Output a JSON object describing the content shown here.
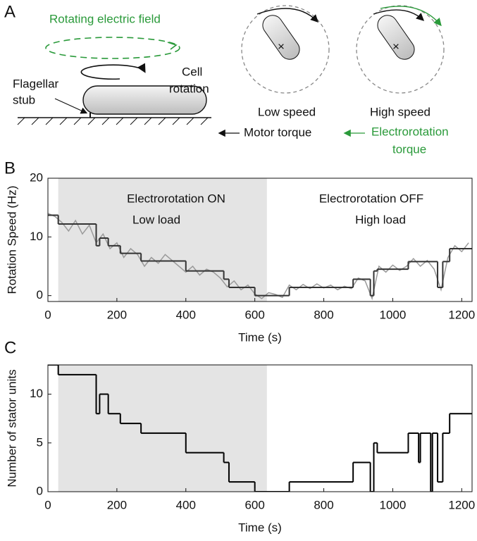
{
  "panel_a": {
    "label": "A",
    "field_label": "Rotating electric field",
    "stub_label": [
      "Flagellar",
      "stub"
    ],
    "rotation_label": [
      "Cell",
      "rotation"
    ],
    "low_speed": "Low speed",
    "high_speed": "High speed",
    "motor_torque": "Motor torque",
    "electro_torque": [
      "Electrorotation",
      "torque"
    ]
  },
  "chart_data": [
    {
      "type": "step",
      "panel_label": "B",
      "xlabel": "Time (s)",
      "ylabel": "Rotation Speed (Hz)",
      "xlim": [
        0,
        1230
      ],
      "ylim": [
        -1,
        20
      ],
      "xticks": [
        0,
        200,
        400,
        600,
        800,
        1000,
        1200
      ],
      "yticks": [
        0,
        10,
        20
      ],
      "shaded_x": [
        30,
        635
      ],
      "annotations": [
        "Electrorotation ON",
        "Low load",
        "Electrorotation OFF",
        "High load"
      ],
      "series": [
        {
          "style": "line",
          "color": "#9a9a9a",
          "x": [
            0,
            20,
            40,
            60,
            80,
            100,
            120,
            140,
            160,
            180,
            200,
            220,
            240,
            260,
            280,
            300,
            320,
            340,
            360,
            380,
            400,
            420,
            440,
            460,
            480,
            500,
            520,
            540,
            560,
            580,
            600,
            620,
            640,
            660,
            680,
            700,
            720,
            740,
            760,
            780,
            800,
            820,
            840,
            860,
            880,
            900,
            920,
            940,
            960,
            980,
            1000,
            1020,
            1040,
            1060,
            1080,
            1100,
            1120,
            1140,
            1160,
            1180,
            1200,
            1220
          ],
          "values": [
            14,
            13.5,
            12.5,
            11,
            12.8,
            10.5,
            12,
            9,
            10.5,
            8,
            9,
            6.5,
            8,
            7,
            5,
            6.5,
            5.5,
            7,
            6,
            5,
            4,
            5,
            3.5,
            4.5,
            4,
            3,
            1.5,
            2.5,
            1,
            1.8,
            0.3,
            -0.5,
            0.5,
            0.2,
            -0.3,
            1.8,
            1,
            1.9,
            1.2,
            2,
            1.3,
            1.8,
            1,
            1.6,
            1.2,
            3,
            2.5,
            -0.5,
            5,
            4,
            5.2,
            4.3,
            5,
            6.3,
            5,
            6,
            4.5,
            1,
            6.5,
            8.5,
            7.5,
            9
          ]
        },
        {
          "style": "step",
          "color": "#333333",
          "x": [
            0,
            30,
            140,
            150,
            175,
            210,
            270,
            400,
            510,
            525,
            600,
            700,
            885,
            935,
            945,
            955,
            1045,
            1130,
            1145,
            1165
          ],
          "values": [
            13.7,
            12.2,
            8.5,
            9.8,
            8.5,
            7.2,
            5.9,
            4.2,
            2.8,
            1.4,
            0,
            1.4,
            2.8,
            0,
            4.2,
            4.5,
            5.8,
            1.4,
            5.8,
            8
          ]
        }
      ]
    },
    {
      "type": "step",
      "panel_label": "C",
      "xlabel": "Time (s)",
      "ylabel": "Number of stator units",
      "xlim": [
        0,
        1230
      ],
      "ylim": [
        0,
        13
      ],
      "xticks": [
        0,
        200,
        400,
        600,
        800,
        1000,
        1200
      ],
      "yticks": [
        0,
        5,
        10
      ],
      "shaded_x": [
        30,
        635
      ],
      "series": [
        {
          "style": "step",
          "color": "#000000",
          "x": [
            0,
            30,
            140,
            150,
            175,
            210,
            270,
            400,
            510,
            525,
            600,
            700,
            885,
            935,
            945,
            955,
            1045,
            1075,
            1080,
            1110,
            1115,
            1130,
            1145,
            1165
          ],
          "values": [
            13,
            12,
            8,
            10,
            8,
            7,
            6,
            4,
            3,
            1,
            0,
            1,
            3,
            0,
            5,
            4,
            6,
            3,
            6,
            0,
            6,
            1,
            6,
            8
          ]
        }
      ]
    }
  ]
}
